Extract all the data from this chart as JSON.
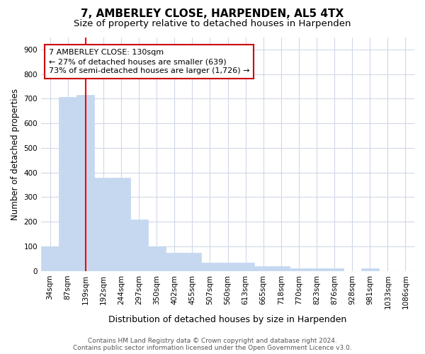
{
  "title": "7, AMBERLEY CLOSE, HARPENDEN, AL5 4TX",
  "subtitle": "Size of property relative to detached houses in Harpenden",
  "xlabel": "Distribution of detached houses by size in Harpenden",
  "ylabel": "Number of detached properties",
  "categories": [
    "34sqm",
    "87sqm",
    "139sqm",
    "192sqm",
    "244sqm",
    "297sqm",
    "350sqm",
    "402sqm",
    "455sqm",
    "507sqm",
    "560sqm",
    "613sqm",
    "665sqm",
    "718sqm",
    "770sqm",
    "823sqm",
    "876sqm",
    "928sqm",
    "981sqm",
    "1033sqm",
    "1086sqm"
  ],
  "values": [
    100,
    708,
    715,
    378,
    378,
    208,
    100,
    73,
    73,
    33,
    33,
    33,
    20,
    20,
    10,
    10,
    10,
    0,
    10,
    0,
    0
  ],
  "bar_color": "#c5d8f0",
  "bar_edge_color": "#c5d8f0",
  "red_line_index": 2,
  "annotation_line1": "7 AMBERLEY CLOSE: 130sqm",
  "annotation_line2": "← 27% of detached houses are smaller (639)",
  "annotation_line3": "73% of semi-detached houses are larger (1,726) →",
  "annotation_box_facecolor": "#ffffff",
  "annotation_box_edgecolor": "#cc0000",
  "footer_line1": "Contains HM Land Registry data © Crown copyright and database right 2024.",
  "footer_line2": "Contains public sector information licensed under the Open Government Licence v3.0.",
  "ylim": [
    0,
    950
  ],
  "yticks": [
    0,
    100,
    200,
    300,
    400,
    500,
    600,
    700,
    800,
    900
  ],
  "background_color": "#ffffff",
  "plot_bg_color": "#ffffff",
  "grid_color": "#d0d8e8",
  "title_fontsize": 11,
  "subtitle_fontsize": 9.5,
  "tick_fontsize": 7.5,
  "ylabel_fontsize": 8.5,
  "xlabel_fontsize": 9,
  "annotation_fontsize": 8,
  "footer_fontsize": 6.5
}
